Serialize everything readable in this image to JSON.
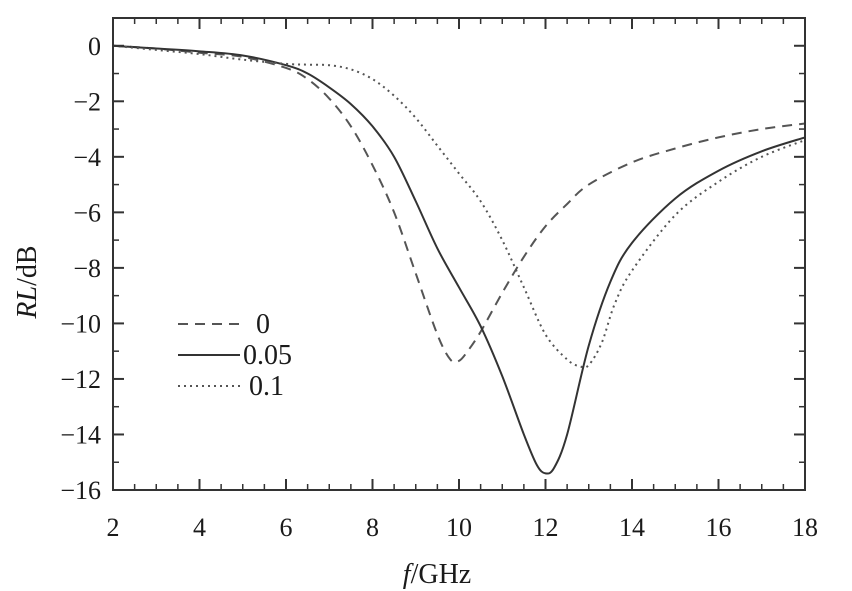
{
  "chart_data": {
    "type": "line",
    "xlabel_prefix": "f",
    "xlabel_unit": "/GHz",
    "ylabel_prefix": "RL",
    "ylabel_unit": "/dB",
    "xlim": [
      2,
      18
    ],
    "ylim": [
      -16,
      1
    ],
    "xticks": [
      2,
      4,
      6,
      8,
      10,
      12,
      14,
      16,
      18
    ],
    "yticks": [
      0,
      -2,
      -4,
      -6,
      -8,
      -10,
      -12,
      -14,
      -16
    ],
    "x_minor_step": 0.5,
    "y_minor_step": 1,
    "grid": false,
    "legend_position": "lower-left",
    "series": [
      {
        "name": "0",
        "line_style": "dashed",
        "color": "#555555",
        "x": [
          2,
          3,
          4,
          5,
          6,
          6.5,
          7,
          7.5,
          8,
          8.5,
          9,
          9.5,
          9.8,
          10,
          10.2,
          10.5,
          11,
          11.5,
          12,
          12.5,
          13,
          14,
          15,
          16,
          17,
          18
        ],
        "y": [
          0,
          -0.1,
          -0.25,
          -0.4,
          -0.8,
          -1.2,
          -1.9,
          -2.9,
          -4.3,
          -6.0,
          -8.2,
          -10.4,
          -11.3,
          -11.35,
          -11.0,
          -10.3,
          -8.9,
          -7.6,
          -6.5,
          -5.7,
          -5.0,
          -4.2,
          -3.7,
          -3.3,
          -3.0,
          -2.8
        ]
      },
      {
        "name": "0.05",
        "line_style": "solid",
        "color": "#333333",
        "x": [
          2,
          3,
          4,
          5,
          6,
          6.5,
          7,
          7.5,
          8,
          8.5,
          9,
          9.5,
          10,
          10.5,
          11,
          11.5,
          11.8,
          12,
          12.2,
          12.5,
          13,
          13.5,
          14,
          15,
          16,
          17,
          18
        ],
        "y": [
          0,
          -0.1,
          -0.2,
          -0.35,
          -0.7,
          -1.0,
          -1.5,
          -2.1,
          -2.9,
          -4.0,
          -5.6,
          -7.3,
          -8.7,
          -10.1,
          -11.9,
          -14.0,
          -15.1,
          -15.4,
          -15.2,
          -14.0,
          -10.8,
          -8.5,
          -7.1,
          -5.5,
          -4.5,
          -3.8,
          -3.3
        ]
      },
      {
        "name": "0.1",
        "line_style": "dotted",
        "color": "#555555",
        "x": [
          2,
          3,
          4,
          5,
          6,
          6.5,
          7,
          7.5,
          8,
          8.5,
          9,
          9.5,
          10,
          10.5,
          11,
          11.5,
          12,
          12.5,
          12.8,
          13,
          13.3,
          13.6,
          14,
          15,
          16,
          17,
          18
        ],
        "y": [
          0,
          -0.15,
          -0.3,
          -0.5,
          -0.65,
          -0.68,
          -0.7,
          -0.85,
          -1.2,
          -1.8,
          -2.6,
          -3.6,
          -4.6,
          -5.6,
          -7.0,
          -8.7,
          -10.4,
          -11.3,
          -11.55,
          -11.5,
          -10.7,
          -9.3,
          -8.1,
          -6.1,
          -4.9,
          -4.0,
          -3.4
        ]
      }
    ]
  }
}
